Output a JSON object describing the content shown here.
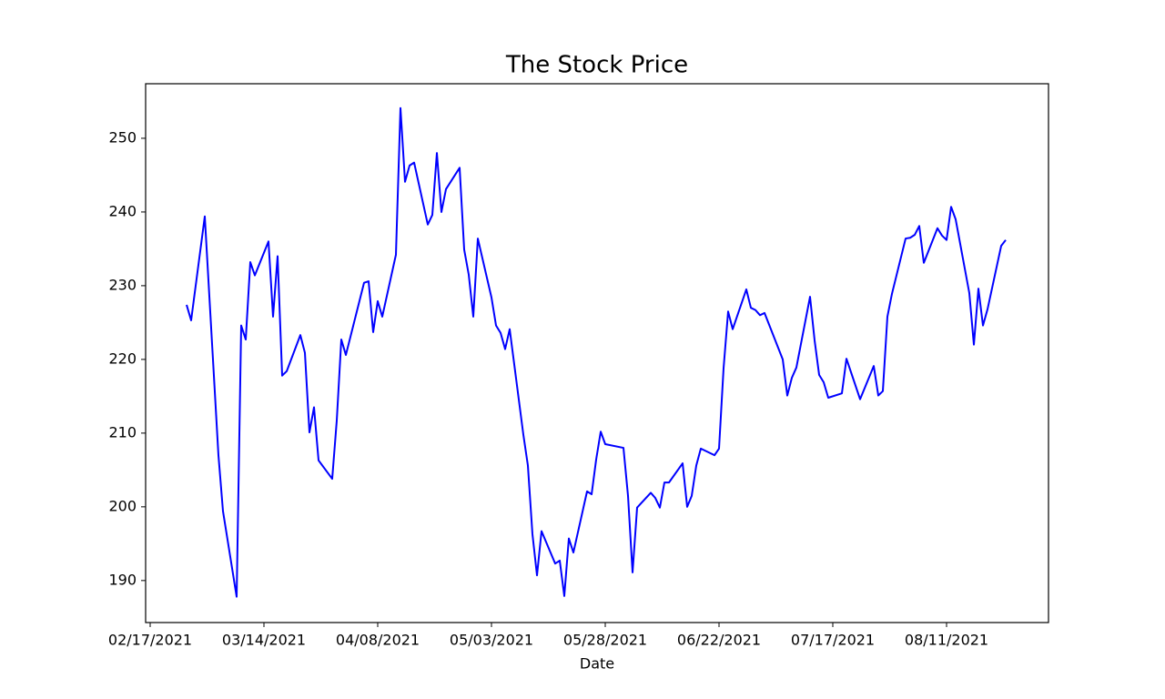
{
  "chart_data": {
    "type": "line",
    "title": "The Stock Price",
    "xlabel": "Date",
    "x": [
      "2021-02-25",
      "2021-02-26",
      "2021-03-01",
      "2021-03-04",
      "2021-03-05",
      "2021-03-08",
      "2021-03-09",
      "2021-03-10",
      "2021-03-11",
      "2021-03-12",
      "2021-03-15",
      "2021-03-16",
      "2021-03-17",
      "2021-03-18",
      "2021-03-19",
      "2021-03-22",
      "2021-03-23",
      "2021-03-24",
      "2021-03-25",
      "2021-03-26",
      "2021-03-29",
      "2021-03-30",
      "2021-03-31",
      "2021-04-01",
      "2021-04-05",
      "2021-04-06",
      "2021-04-07",
      "2021-04-08",
      "2021-04-09",
      "2021-04-12",
      "2021-04-13",
      "2021-04-14",
      "2021-04-15",
      "2021-04-16",
      "2021-04-19",
      "2021-04-20",
      "2021-04-21",
      "2021-04-22",
      "2021-04-23",
      "2021-04-26",
      "2021-04-27",
      "2021-04-28",
      "2021-04-29",
      "2021-04-30",
      "2021-05-03",
      "2021-05-04",
      "2021-05-05",
      "2021-05-06",
      "2021-05-07",
      "2021-05-10",
      "2021-05-11",
      "2021-05-12",
      "2021-05-13",
      "2021-05-14",
      "2021-05-17",
      "2021-05-18",
      "2021-05-19",
      "2021-05-20",
      "2021-05-21",
      "2021-05-24",
      "2021-05-25",
      "2021-05-26",
      "2021-05-27",
      "2021-05-28",
      "2021-06-01",
      "2021-06-02",
      "2021-06-03",
      "2021-06-04",
      "2021-06-07",
      "2021-06-08",
      "2021-06-09",
      "2021-06-10",
      "2021-06-11",
      "2021-06-14",
      "2021-06-15",
      "2021-06-16",
      "2021-06-17",
      "2021-06-18",
      "2021-06-21",
      "2021-06-22",
      "2021-06-23",
      "2021-06-24",
      "2021-06-25",
      "2021-06-28",
      "2021-06-29",
      "2021-06-30",
      "2021-07-01",
      "2021-07-02",
      "2021-07-06",
      "2021-07-07",
      "2021-07-08",
      "2021-07-09",
      "2021-07-12",
      "2021-07-13",
      "2021-07-14",
      "2021-07-15",
      "2021-07-16",
      "2021-07-19",
      "2021-07-20",
      "2021-07-23",
      "2021-07-26",
      "2021-07-27",
      "2021-07-28",
      "2021-07-29",
      "2021-07-30",
      "2021-08-02",
      "2021-08-03",
      "2021-08-04",
      "2021-08-05",
      "2021-08-06",
      "2021-08-09",
      "2021-08-10",
      "2021-08-11",
      "2021-08-12",
      "2021-08-13",
      "2021-08-16",
      "2021-08-17",
      "2021-08-18",
      "2021-08-19",
      "2021-08-20",
      "2021-08-23",
      "2021-08-24"
    ],
    "series": [
      {
        "color": "#0000ff",
        "values": [
          227.4,
          225.3,
          239.4,
          207.0,
          199.4,
          187.8,
          224.6,
          222.7,
          233.2,
          231.4,
          236.0,
          225.8,
          234.0,
          217.8,
          218.4,
          223.3,
          220.9,
          210.1,
          213.5,
          206.3,
          203.8,
          211.7,
          222.7,
          220.6,
          230.4,
          230.6,
          223.7,
          227.9,
          225.8,
          234.2,
          254.1,
          244.1,
          246.3,
          246.7,
          238.3,
          239.6,
          248.0,
          240.0,
          243.1,
          246.0,
          234.9,
          231.5,
          225.8,
          236.4,
          228.4,
          224.6,
          223.6,
          221.4,
          224.1,
          209.8,
          205.6,
          196.3,
          190.7,
          196.7,
          192.3,
          192.7,
          187.9,
          195.7,
          193.8,
          202.1,
          201.7,
          206.4,
          210.2,
          208.5,
          208.0,
          201.5,
          191.1,
          199.9,
          201.9,
          201.2,
          199.9,
          203.3,
          203.3,
          205.9,
          200.0,
          201.5,
          205.6,
          207.9,
          207.0,
          207.9,
          218.8,
          226.5,
          224.1,
          229.5,
          227.0,
          226.7,
          226.0,
          226.3,
          220.0,
          215.1,
          217.5,
          218.9,
          228.5,
          222.6,
          217.9,
          216.9,
          214.8,
          215.4,
          220.1,
          214.6,
          219.1,
          215.1,
          215.7,
          225.8,
          228.9,
          236.4,
          236.5,
          236.9,
          238.1,
          233.1,
          237.8,
          236.8,
          236.2,
          240.7,
          239.0,
          229.0,
          222.0,
          229.6,
          224.6,
          226.8,
          235.4,
          236.2
        ]
      }
    ],
    "xlim": [
      "2021-02-16",
      "2021-09-02T09:36:00Z"
    ],
    "xticks": [
      {
        "value": "2021-02-17",
        "label": "02/17/2021"
      },
      {
        "value": "2021-03-14",
        "label": "03/14/2021"
      },
      {
        "value": "2021-04-08",
        "label": "04/08/2021"
      },
      {
        "value": "2021-05-03",
        "label": "05/03/2021"
      },
      {
        "value": "2021-05-28",
        "label": "05/28/2021"
      },
      {
        "value": "2021-06-22",
        "label": "06/22/2021"
      },
      {
        "value": "2021-07-17",
        "label": "07/17/2021"
      },
      {
        "value": "2021-08-11",
        "label": "08/11/2021"
      }
    ],
    "ylim": [
      184.3,
      257.4
    ],
    "yticks": [
      190,
      200,
      210,
      220,
      230,
      240,
      250
    ]
  }
}
